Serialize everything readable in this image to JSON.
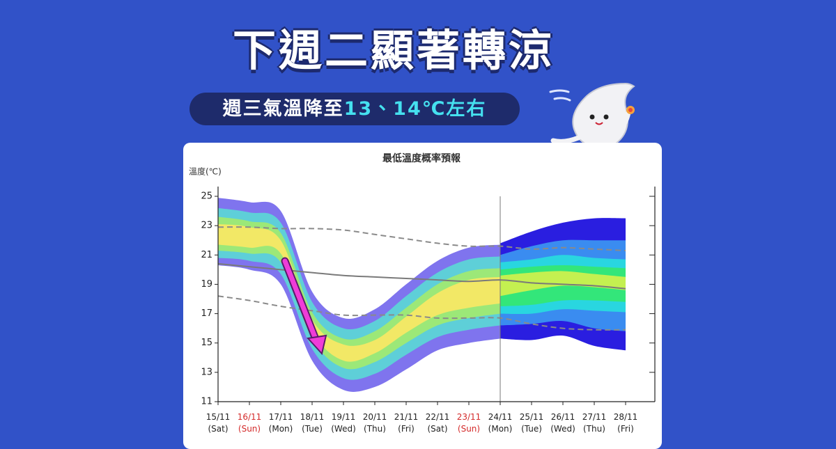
{
  "header": {
    "title": "下週二顯著轉涼",
    "subtitle": "週三氣溫降至",
    "subtitle_highlight": "13、14℃左右"
  },
  "chart_data": {
    "type": "plume",
    "title": "最低溫度概率預報",
    "y_label": "溫度(℃)",
    "categories": [
      "15/11",
      "16/11",
      "17/11",
      "18/11",
      "19/11",
      "20/11",
      "21/11",
      "22/11",
      "23/11",
      "24/11",
      "25/11",
      "26/11",
      "27/11",
      "28/11"
    ],
    "weekdays": [
      "(Sat)",
      "(Sun)",
      "(Mon)",
      "(Tue)",
      "(Wed)",
      "(Thu)",
      "(Fri)",
      "(Sat)",
      "(Sun)",
      "(Mon)",
      "(Tue)",
      "(Wed)",
      "(Thu)",
      "(Fri)"
    ],
    "label_colors": [
      "#222",
      "#d42a2a",
      "#222",
      "#222",
      "#222",
      "#222",
      "#222",
      "#222",
      "#d42a2a",
      "#222",
      "#222",
      "#222",
      "#222",
      "#222"
    ],
    "ylim": [
      11,
      25
    ],
    "yticks": [
      11,
      13,
      15,
      17,
      19,
      21,
      23,
      25
    ],
    "grid": false,
    "plume": [
      {
        "color": "#7f74ee",
        "low": [
          20.3,
          20.0,
          19.0,
          13.8,
          11.8,
          12.0,
          13.2,
          14.5,
          15.0,
          15.3,
          null,
          null,
          null,
          null
        ],
        "high": [
          24.9,
          24.6,
          24.0,
          18.5,
          16.7,
          17.3,
          19.0,
          20.6,
          21.5,
          21.7,
          null,
          null,
          null,
          null
        ]
      },
      {
        "color": "#5ecfd8",
        "low": [
          20.8,
          20.6,
          19.7,
          14.6,
          12.6,
          12.9,
          14.2,
          15.4,
          15.9,
          16.2,
          null,
          null,
          null,
          null
        ],
        "high": [
          24.2,
          23.9,
          23.2,
          17.8,
          16.0,
          16.5,
          18.2,
          19.8,
          20.7,
          20.9,
          null,
          null,
          null,
          null
        ]
      },
      {
        "color": "#9ce878",
        "low": [
          21.3,
          21.1,
          20.5,
          15.3,
          13.3,
          13.7,
          15.0,
          16.2,
          16.7,
          17.0,
          null,
          null,
          null,
          null
        ],
        "high": [
          23.6,
          23.3,
          22.5,
          17.1,
          15.3,
          15.8,
          17.4,
          19.0,
          19.9,
          20.1,
          null,
          null,
          null,
          null
        ]
      },
      {
        "color": "#f2e866",
        "low": [
          21.7,
          21.5,
          21.1,
          15.8,
          13.8,
          14.3,
          15.7,
          16.9,
          17.4,
          17.7,
          null,
          null,
          null,
          null
        ],
        "high": [
          23.1,
          22.9,
          22.0,
          16.6,
          14.9,
          15.2,
          16.8,
          18.4,
          19.3,
          19.5,
          null,
          null,
          null,
          null
        ]
      },
      {
        "color": "#2a1ee0",
        "low": [
          null,
          null,
          null,
          null,
          null,
          null,
          null,
          null,
          null,
          15.3,
          15.2,
          15.5,
          14.8,
          14.5
        ],
        "high": [
          null,
          null,
          null,
          null,
          null,
          null,
          null,
          null,
          null,
          21.8,
          22.6,
          23.2,
          23.5,
          23.5
        ]
      },
      {
        "color": "#3a8cf0",
        "low": [
          null,
          null,
          null,
          null,
          null,
          null,
          null,
          null,
          null,
          16.2,
          16.3,
          16.5,
          16.0,
          15.8
        ],
        "high": [
          null,
          null,
          null,
          null,
          null,
          null,
          null,
          null,
          null,
          21.0,
          21.6,
          22.0,
          22.0,
          22.0
        ]
      },
      {
        "color": "#29d6e0",
        "low": [
          null,
          null,
          null,
          null,
          null,
          null,
          null,
          null,
          null,
          17.0,
          17.0,
          17.3,
          17.2,
          17.1
        ],
        "high": [
          null,
          null,
          null,
          null,
          null,
          null,
          null,
          null,
          null,
          20.5,
          20.7,
          21.0,
          20.8,
          20.7
        ]
      },
      {
        "color": "#33e67a",
        "low": [
          null,
          null,
          null,
          null,
          null,
          null,
          null,
          null,
          null,
          17.5,
          17.6,
          17.9,
          17.9,
          17.8
        ],
        "high": [
          null,
          null,
          null,
          null,
          null,
          null,
          null,
          null,
          null,
          20.0,
          20.2,
          20.3,
          20.2,
          20.1
        ]
      },
      {
        "color": "#c4f050",
        "low": [
          null,
          null,
          null,
          null,
          null,
          null,
          null,
          null,
          null,
          18.2,
          18.6,
          18.9,
          18.8,
          18.6
        ],
        "high": [
          null,
          null,
          null,
          null,
          null,
          null,
          null,
          null,
          null,
          19.6,
          19.8,
          19.9,
          19.7,
          19.5
        ]
      }
    ],
    "series": [
      {
        "color": "#8a8a8a",
        "style": "dashed",
        "values": [
          22.9,
          22.9,
          22.8,
          22.8,
          22.7,
          22.4,
          22.1,
          21.8,
          21.6,
          21.6,
          21.4,
          21.5,
          21.4,
          21.3
        ]
      },
      {
        "color": "#7a7a7a",
        "style": "solid",
        "values": [
          20.4,
          20.2,
          20.0,
          19.8,
          19.6,
          19.5,
          19.4,
          19.3,
          19.2,
          19.3,
          19.1,
          19.0,
          18.9,
          18.7
        ]
      },
      {
        "color": "#8a8a8a",
        "style": "dashed",
        "values": [
          18.2,
          17.9,
          17.5,
          17.2,
          16.9,
          16.9,
          16.9,
          16.7,
          16.7,
          16.7,
          16.3,
          16.0,
          15.9,
          15.9
        ]
      }
    ]
  }
}
